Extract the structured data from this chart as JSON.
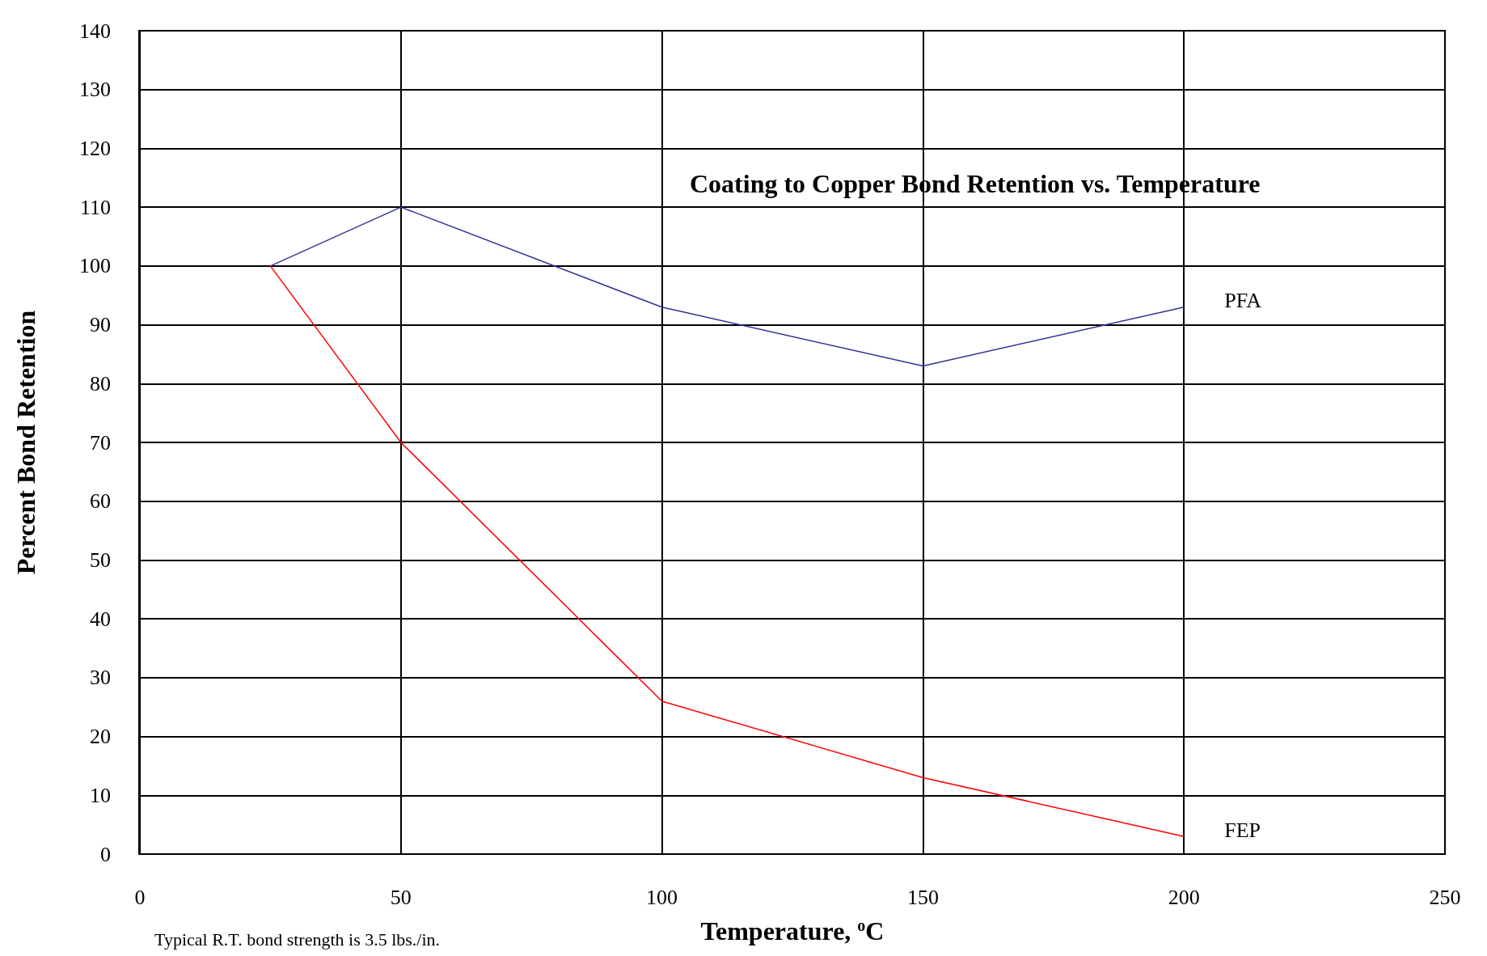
{
  "chart_data": {
    "type": "line",
    "title": "Coating to Copper Bond Retention vs. Temperature",
    "xlabel": "Temperature, $^{o}$C",
    "ylabel": "Percent Bond Retention",
    "annotations": [
      "Typical R.T. bond strength is 3.5 lbs./in."
    ],
    "x": [
      25,
      50,
      100,
      150,
      200
    ],
    "series": [
      {
        "name": "PFA",
        "color": "#333399",
        "values": [
          100,
          110,
          93,
          83,
          93
        ]
      },
      {
        "name": "FEP",
        "color": "#ff0000",
        "values": [
          100,
          70,
          26,
          13,
          3
        ]
      }
    ],
    "xlim": [
      0,
      250
    ],
    "xticks": [
      0,
      50,
      100,
      150,
      200,
      250
    ],
    "ylim": [
      0,
      140
    ],
    "yticks": [
      0,
      10,
      20,
      30,
      40,
      50,
      60,
      70,
      80,
      90,
      100,
      110,
      120,
      130,
      140
    ],
    "grid": true,
    "legend": false,
    "marker": "none",
    "line_style": "solid"
  }
}
